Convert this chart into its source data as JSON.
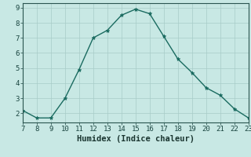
{
  "x": [
    7,
    8,
    9,
    10,
    11,
    12,
    13,
    14,
    15,
    16,
    17,
    18,
    19,
    20,
    21,
    22,
    23
  ],
  "y": [
    2.2,
    1.7,
    1.7,
    3.0,
    4.9,
    7.0,
    7.5,
    8.5,
    8.9,
    8.6,
    7.1,
    5.6,
    4.7,
    3.7,
    3.2,
    2.3,
    1.7
  ],
  "xlabel": "Humidex (Indice chaleur)",
  "xlim": [
    7,
    23
  ],
  "ylim": [
    1.4,
    9.3
  ],
  "yticks": [
    2,
    3,
    4,
    5,
    6,
    7,
    8,
    9
  ],
  "xticks": [
    7,
    8,
    9,
    10,
    11,
    12,
    13,
    14,
    15,
    16,
    17,
    18,
    19,
    20,
    21,
    22,
    23
  ],
  "line_color": "#1a6b60",
  "marker_color": "#1a6b60",
  "bg_color": "#c8e8e4",
  "grid_color": "#a8ccc8",
  "axis_color": "#2a5550",
  "tick_color": "#1a4540",
  "label_color": "#1a3530",
  "xlabel_fontsize": 7.5,
  "tick_fontsize": 6.5
}
